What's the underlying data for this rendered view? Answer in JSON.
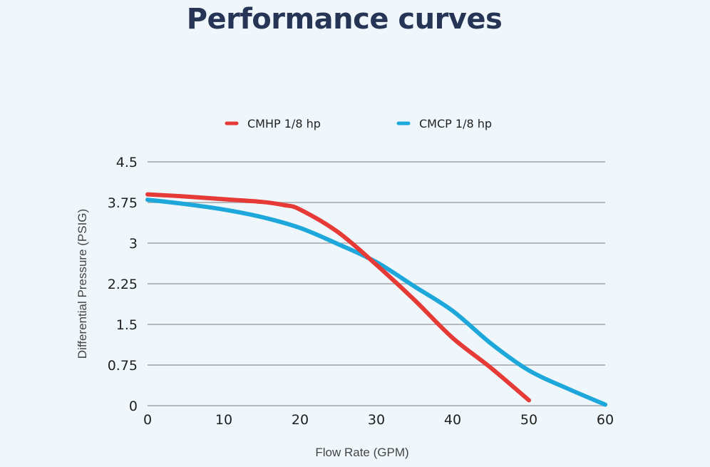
{
  "title": "Performance curves",
  "chart_data": {
    "type": "line",
    "xlabel": "Flow Rate (GPM)",
    "ylabel": "Differential Pressure (PSIG)",
    "xlim": [
      0,
      60
    ],
    "ylim": [
      0,
      4.5
    ],
    "x_ticks": [
      "0",
      "10",
      "20",
      "30",
      "40",
      "50",
      "60"
    ],
    "y_ticks": [
      "0",
      "0.75",
      "1.5",
      "2.25",
      "3",
      "3.75",
      "4.5"
    ],
    "grid": "horizontal",
    "legend_position": "top-center",
    "series": [
      {
        "name": "CMHP 1/8 hp",
        "color": "#e53a35",
        "points": [
          [
            0,
            3.9
          ],
          [
            5,
            3.86
          ],
          [
            10,
            3.81
          ],
          [
            15,
            3.76
          ],
          [
            18,
            3.7
          ],
          [
            20,
            3.62
          ],
          [
            25,
            3.2
          ],
          [
            30,
            2.6
          ],
          [
            35,
            1.95
          ],
          [
            40,
            1.25
          ],
          [
            45,
            0.7
          ],
          [
            50,
            0.1
          ]
        ]
      },
      {
        "name": "CMCP 1/8 hp",
        "color": "#1ea7da",
        "points": [
          [
            0,
            3.8
          ],
          [
            5,
            3.72
          ],
          [
            10,
            3.62
          ],
          [
            15,
            3.48
          ],
          [
            20,
            3.28
          ],
          [
            25,
            2.98
          ],
          [
            30,
            2.65
          ],
          [
            35,
            2.2
          ],
          [
            40,
            1.75
          ],
          [
            45,
            1.15
          ],
          [
            50,
            0.65
          ],
          [
            55,
            0.32
          ],
          [
            60,
            0.02
          ]
        ]
      }
    ]
  }
}
